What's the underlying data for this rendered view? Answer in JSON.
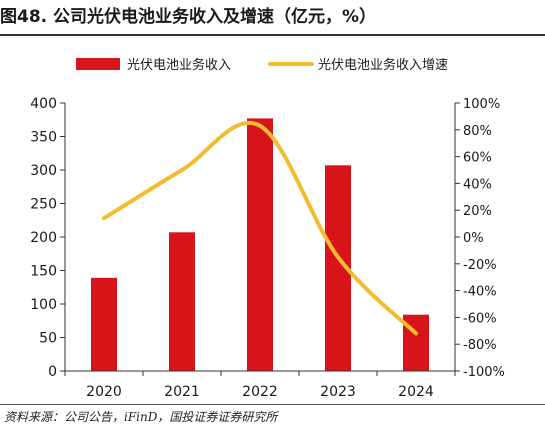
{
  "figure": {
    "title": "图48. 公司光伏电池业务收入及增速（亿元，%）",
    "source": "资料来源：公司公告，iFinD，国投证券证券研究所"
  },
  "colors": {
    "bar": "#d7141a",
    "line": "#f1bd2e",
    "axis": "#333333",
    "text": "#1a1a1a"
  },
  "chart_data": {
    "type": "bar",
    "categories": [
      "2020",
      "2021",
      "2022",
      "2023",
      "2024"
    ],
    "series": [
      {
        "name": "光伏电池业务收入",
        "type": "bar",
        "axis": "left",
        "values": [
          139,
          207,
          377,
          307,
          84
        ]
      },
      {
        "name": "光伏电池业务收入增速",
        "type": "line",
        "axis": "right",
        "smooth": true,
        "values": [
          14,
          50,
          83,
          -15,
          -72
        ]
      }
    ],
    "y_left": {
      "lim": [
        0,
        400
      ],
      "ticks": [
        0,
        50,
        100,
        150,
        200,
        250,
        300,
        350,
        400
      ],
      "tick_labels": [
        "0",
        "50",
        "100",
        "150",
        "200",
        "250",
        "300",
        "350",
        "400"
      ]
    },
    "y_right": {
      "lim": [
        -100,
        100
      ],
      "ticks": [
        -100,
        -80,
        -60,
        -40,
        -20,
        0,
        20,
        40,
        60,
        80,
        100
      ],
      "tick_labels": [
        "-100%",
        "-80%",
        "-60%",
        "-40%",
        "-20%",
        "0%",
        "20%",
        "40%",
        "60%",
        "80%",
        "100%"
      ]
    },
    "legend_position": "top",
    "grid": false
  }
}
